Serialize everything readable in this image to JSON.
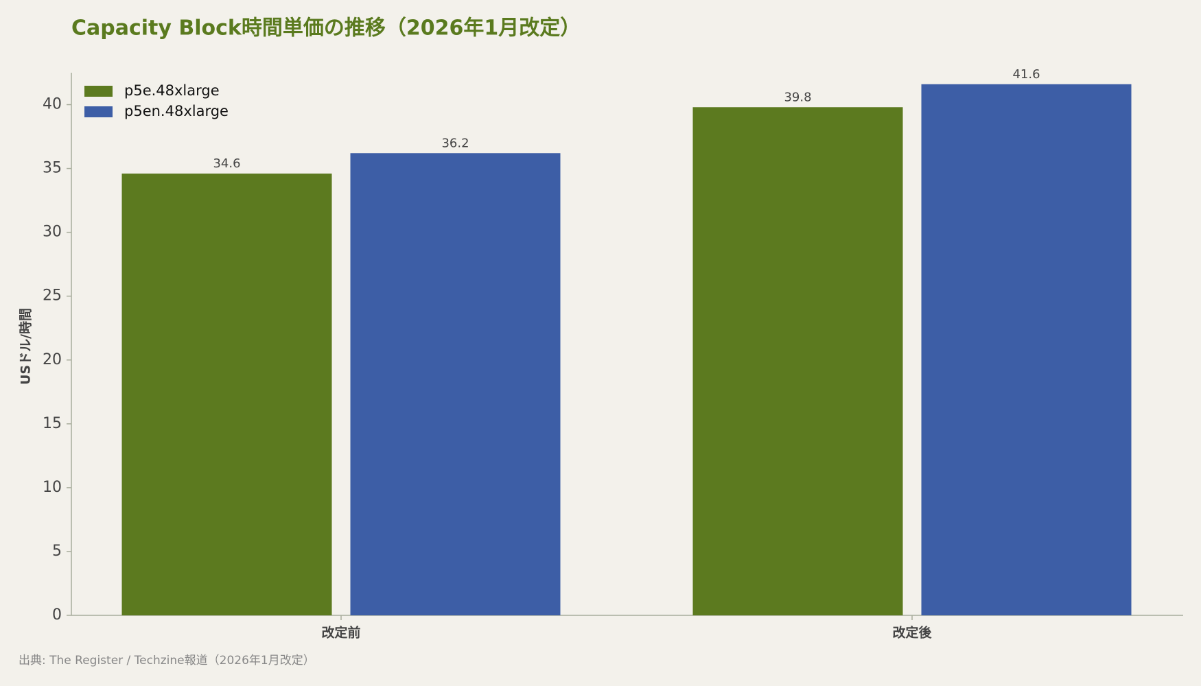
{
  "chart_data": {
    "type": "bar",
    "title": "Capacity Block時間単価の推移（2026年1月改定）",
    "ylabel": "USドル/時間",
    "source": "出典: The Register / Techzine報道（2026年1月改定）",
    "categories": [
      "改定前",
      "改定後"
    ],
    "series": [
      {
        "name": "p5e.48xlarge",
        "color": "#5c7a1f",
        "values": [
          34.6,
          39.8
        ]
      },
      {
        "name": "p5en.48xlarge",
        "color": "#3d5ea6",
        "values": [
          36.2,
          41.6
        ]
      }
    ],
    "ylim": [
      0,
      42.5
    ],
    "yticks": [
      0,
      5,
      10,
      15,
      20,
      25,
      30,
      35,
      40
    ],
    "legend": "upper-left",
    "grid": false
  }
}
